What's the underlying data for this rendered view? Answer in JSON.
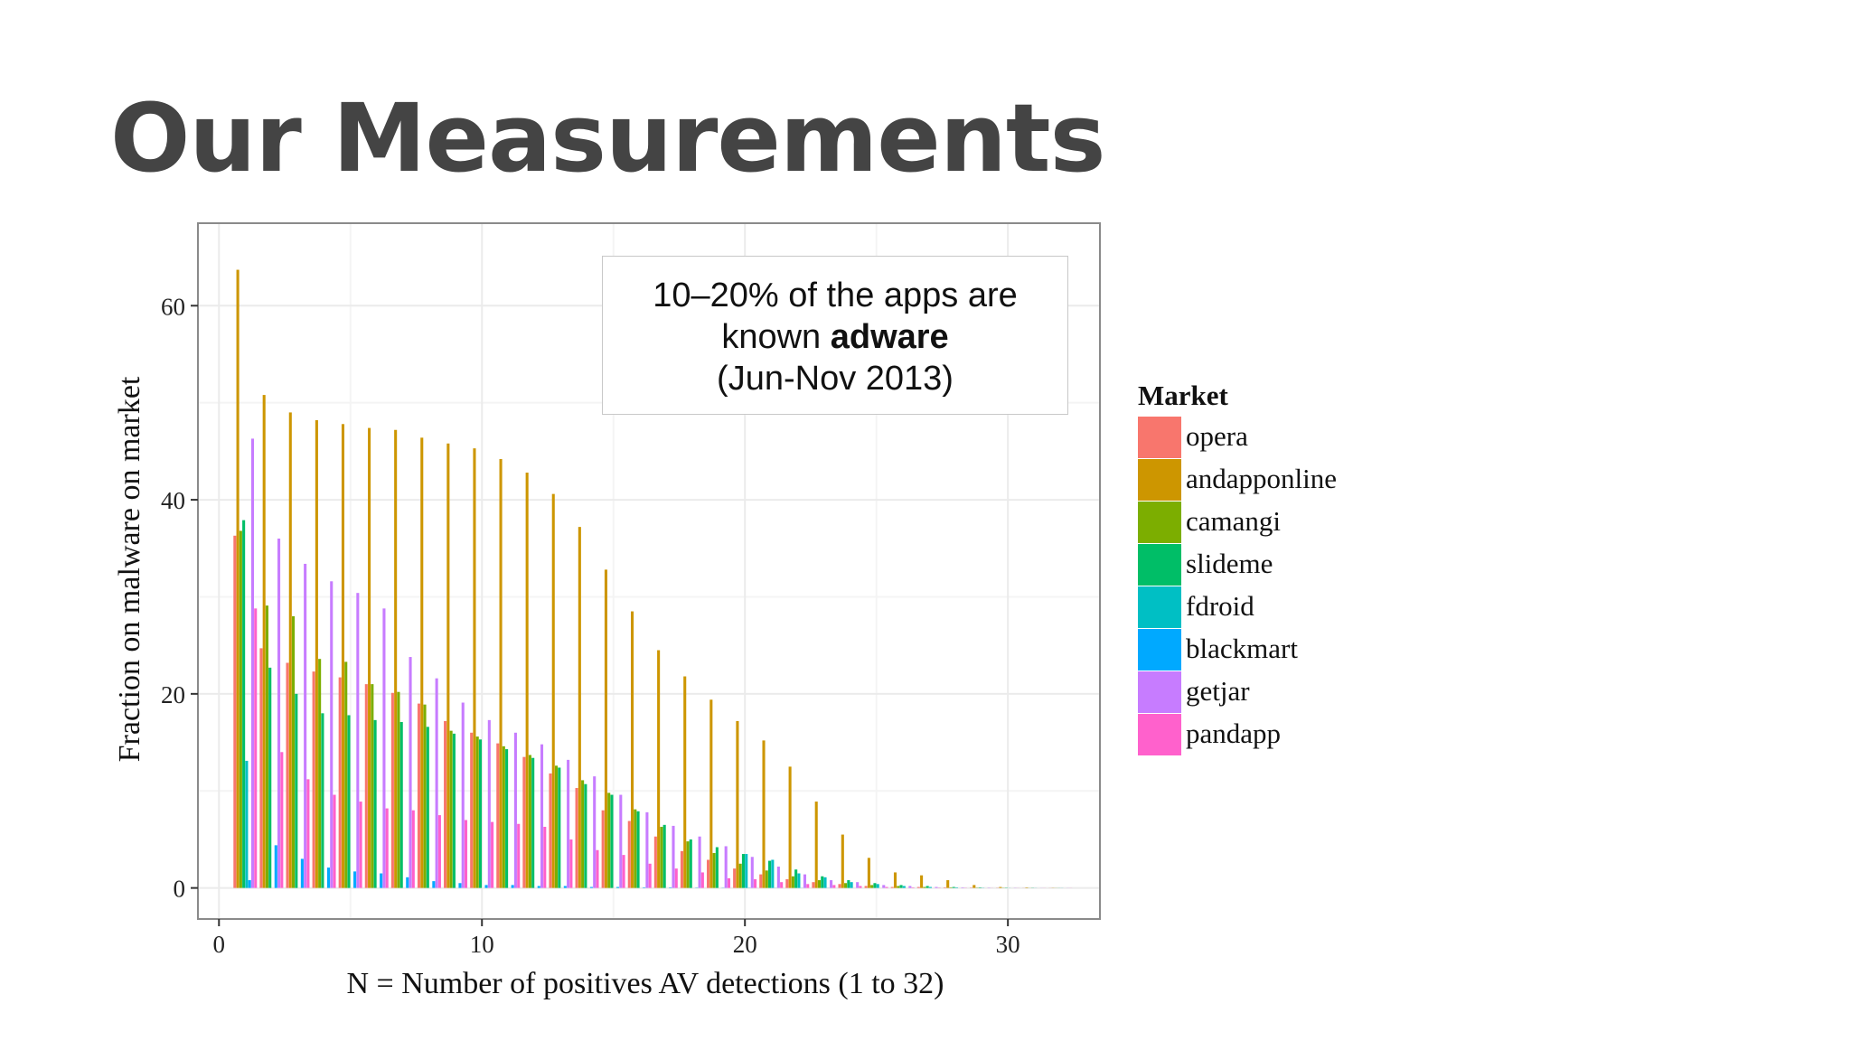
{
  "slide": {
    "title": "Our Measurements"
  },
  "annotation": {
    "line1": "10–20% of the apps are",
    "line2_prefix": "known ",
    "line2_bold": "adware",
    "line3": "(Jun-Nov 2013)"
  },
  "colors": {
    "title": "#444444",
    "panel_border": "#8a8a8a",
    "grid": "#ebebeb"
  },
  "chart_data": {
    "type": "bar",
    "xlabel": "N = Number of positives AV detections (1 to 32)",
    "ylabel": "Fraction on malware on market",
    "xlim": [
      -0.8,
      33.5
    ],
    "ylim": [
      -3.2,
      68.5
    ],
    "x_ticks": [
      0,
      10,
      20,
      30
    ],
    "y_ticks": [
      0,
      20,
      40,
      60
    ],
    "grid": true,
    "legend_title": "Market",
    "legend_position": "right",
    "x": [
      1,
      2,
      3,
      4,
      5,
      6,
      7,
      8,
      9,
      10,
      11,
      12,
      13,
      14,
      15,
      16,
      17,
      18,
      19,
      20,
      21,
      22,
      23,
      24,
      25,
      26,
      27,
      28,
      29,
      30,
      31,
      32
    ],
    "series": [
      {
        "name": "opera",
        "color": "#F8766D",
        "values": [
          36.3,
          24.7,
          23.2,
          22.3,
          21.7,
          21.0,
          20.1,
          19.0,
          17.2,
          16.0,
          14.9,
          13.5,
          11.8,
          10.3,
          8.0,
          6.9,
          5.3,
          3.8,
          2.9,
          2.0,
          1.4,
          0.9,
          0.6,
          0.4,
          0.2,
          0.1,
          0.1,
          0.05,
          0.03,
          0.02,
          0.01,
          0.01
        ]
      },
      {
        "name": "andapponline",
        "color": "#CD9600",
        "values": [
          63.7,
          50.8,
          49.0,
          48.2,
          47.8,
          47.4,
          47.2,
          46.4,
          45.8,
          45.3,
          44.2,
          42.8,
          40.6,
          37.2,
          32.8,
          28.5,
          24.5,
          21.8,
          19.4,
          17.2,
          15.2,
          12.5,
          8.9,
          5.5,
          3.1,
          1.6,
          1.3,
          0.8,
          0.3,
          0.1,
          0.05,
          0.02
        ]
      },
      {
        "name": "camangi",
        "color": "#7CAE00",
        "values": [
          36.8,
          29.1,
          28.0,
          23.6,
          23.3,
          21.0,
          20.2,
          18.9,
          16.2,
          15.6,
          14.6,
          13.7,
          12.6,
          11.1,
          9.8,
          8.1,
          6.3,
          4.8,
          3.6,
          2.5,
          1.8,
          1.2,
          0.8,
          0.5,
          0.3,
          0.2,
          0.1,
          0.05,
          0.03,
          0.02,
          0.01,
          0.01
        ]
      },
      {
        "name": "slideme",
        "color": "#00BE67",
        "values": [
          37.9,
          22.7,
          20.0,
          18.0,
          17.8,
          17.3,
          17.1,
          16.6,
          15.9,
          15.3,
          14.3,
          13.4,
          12.4,
          10.7,
          9.6,
          7.9,
          6.5,
          5.0,
          4.2,
          3.5,
          2.8,
          1.9,
          1.2,
          0.8,
          0.5,
          0.3,
          0.2,
          0.1,
          0.05,
          0.03,
          0.02,
          0.01
        ]
      },
      {
        "name": "fdroid",
        "color": "#00BFC4",
        "values": [
          13.1,
          0.0,
          0.0,
          0.0,
          0.0,
          0.0,
          0.0,
          0.0,
          0.0,
          0.0,
          0.0,
          0.0,
          0.0,
          0.0,
          0.0,
          0.0,
          0.0,
          0.0,
          0.0,
          3.5,
          2.9,
          1.5,
          1.1,
          0.6,
          0.4,
          0.2,
          0.1,
          0.05,
          0.02,
          0.01,
          0.01,
          0.01
        ]
      },
      {
        "name": "blackmart",
        "color": "#00A9FF",
        "values": [
          0.8,
          4.4,
          3.0,
          2.1,
          1.7,
          1.5,
          1.1,
          0.7,
          0.5,
          0.3,
          0.3,
          0.2,
          0.2,
          0.1,
          0.1,
          0.05,
          0.05,
          0.03,
          0.02,
          0.02,
          0.01,
          0.01,
          0.01,
          0.0,
          0.0,
          0.0,
          0.0,
          0.0,
          0.0,
          0.0,
          0.0,
          0.0
        ]
      },
      {
        "name": "getjar",
        "color": "#C77CFF",
        "values": [
          46.3,
          36.0,
          33.4,
          31.6,
          30.4,
          28.8,
          23.8,
          21.6,
          19.1,
          17.3,
          16.0,
          14.8,
          13.2,
          11.5,
          9.6,
          7.8,
          6.4,
          5.3,
          4.3,
          3.2,
          2.2,
          1.4,
          0.8,
          0.6,
          0.3,
          0.2,
          0.1,
          0.05,
          0.03,
          0.02,
          0.01,
          0.01
        ]
      },
      {
        "name": "pandapp",
        "color": "#FF61CC",
        "values": [
          28.8,
          14.0,
          11.2,
          9.6,
          8.9,
          8.2,
          8.0,
          7.5,
          7.0,
          6.8,
          6.6,
          6.3,
          5.0,
          3.9,
          3.4,
          2.5,
          2.0,
          1.6,
          1.0,
          0.9,
          0.6,
          0.4,
          0.3,
          0.2,
          0.1,
          0.05,
          0.03,
          0.02,
          0.01,
          0.01,
          0.01,
          0.01
        ]
      }
    ]
  }
}
